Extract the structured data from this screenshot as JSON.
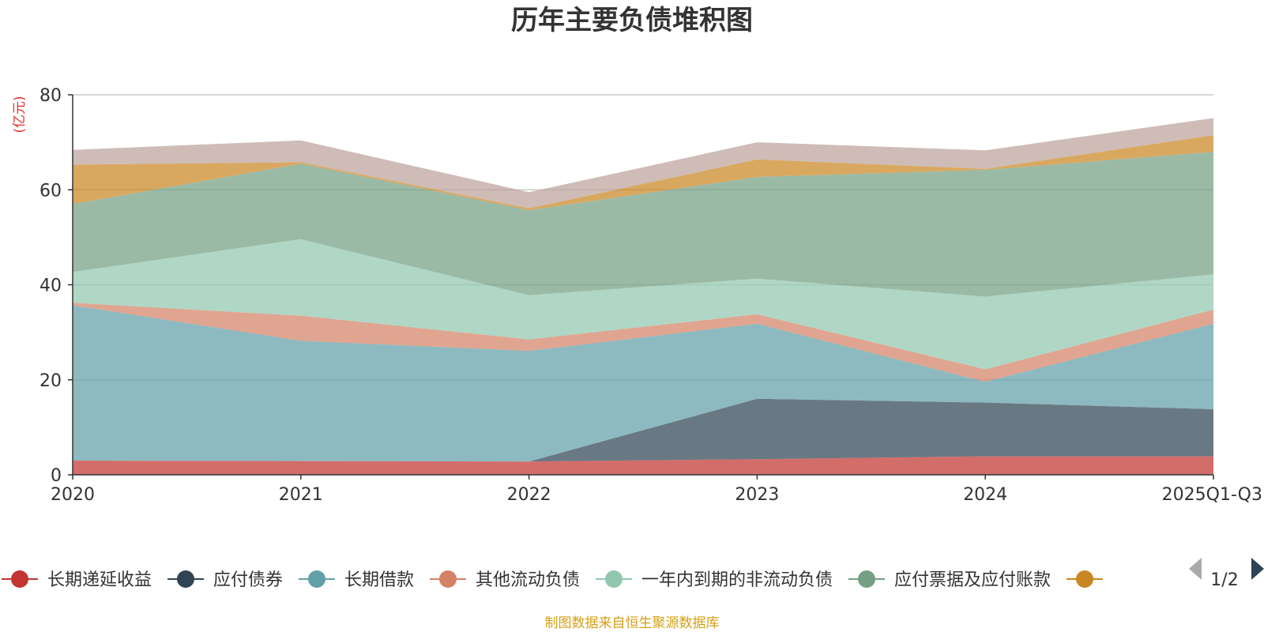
{
  "chart_data": {
    "type": "area",
    "stacked": true,
    "title": "历年主要负债堆积图",
    "unit": "(亿元)",
    "categories": [
      "2020",
      "2021",
      "2022",
      "2023",
      "2024",
      "2025Q1-Q3"
    ],
    "ylim": [
      0,
      80
    ],
    "yticks": [
      0,
      20,
      40,
      60,
      80
    ],
    "grid": true,
    "series": [
      {
        "name": "长期递延收益",
        "color": "#c23531",
        "values": [
          3.0,
          2.9,
          2.8,
          3.3,
          3.9,
          3.9
        ]
      },
      {
        "name": "应付债券",
        "color": "#2f4554",
        "values": [
          0,
          0,
          0,
          12.7,
          11.3,
          9.9
        ]
      },
      {
        "name": "长期借款",
        "color": "#61a0a8",
        "values": [
          32.7,
          25.3,
          23.3,
          15.8,
          4.4,
          18.0
        ]
      },
      {
        "name": "其他流动负债",
        "color": "#d48265",
        "values": [
          0.5,
          5.3,
          2.4,
          2.0,
          2.6,
          3.0
        ]
      },
      {
        "name": "一年内到期的非流动负债",
        "color": "#91c7ae",
        "values": [
          6.5,
          16.1,
          9.3,
          7.5,
          15.3,
          7.4
        ]
      },
      {
        "name": "应付票据及应付账款",
        "color": "#749f83",
        "values": [
          14.3,
          15.9,
          17.9,
          21.4,
          26.7,
          25.8
        ]
      },
      {
        "name": "",
        "color": "#ca8622",
        "values": [
          8.3,
          0.3,
          0.4,
          3.7,
          0.2,
          3.5
        ]
      },
      {
        "name": "",
        "color": "#bda29a",
        "values": [
          3.1,
          4.6,
          3.4,
          3.6,
          3.9,
          3.6
        ]
      }
    ],
    "legend": {
      "position": "bottom",
      "visible_items": [
        "长期递延收益",
        "应付债券",
        "长期借款",
        "其他流动负债",
        "一年内到期的非流动负债",
        "应付票据及应付账款",
        ""
      ],
      "page": "1/2"
    },
    "source": "制图数据来自恒生聚源数据库"
  },
  "colors": {
    "source_text": "#d4a017",
    "unit_text": "#e03030",
    "pager_prev": "#aaaaaa",
    "pager_next": "#2f4554",
    "grid": "#cccccc",
    "axis": "#333333"
  }
}
